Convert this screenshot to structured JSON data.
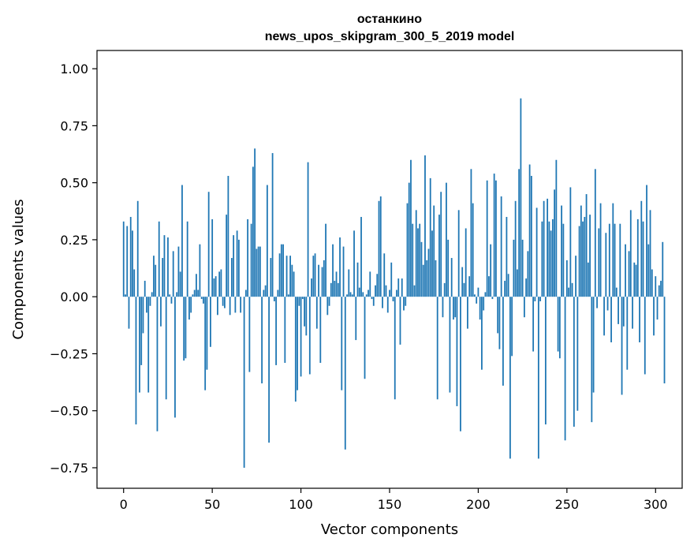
{
  "chart_data": {
    "type": "bar",
    "title": "останкино",
    "subtitle": "news_upos_skipgram_300_5_2019 model",
    "xlabel": "Vector components",
    "ylabel": "Components values",
    "xlim": [
      -15,
      315
    ],
    "ylim": [
      -0.84,
      1.08
    ],
    "xticks": [
      0,
      50,
      100,
      150,
      200,
      250,
      300
    ],
    "yticks": [
      -0.75,
      -0.5,
      -0.25,
      0.0,
      0.25,
      0.5,
      0.75,
      1.0
    ],
    "ytick_labels": [
      "−0.75",
      "−0.50",
      "−0.25",
      "0.00",
      "0.25",
      "0.50",
      "0.75",
      "1.00"
    ],
    "bar_color": "#1f77b4",
    "grid": false,
    "legend": "none",
    "values": [
      0.33,
      0.01,
      0.31,
      -0.14,
      0.35,
      0.29,
      0.12,
      -0.56,
      0.42,
      -0.42,
      -0.3,
      -0.16,
      0.07,
      -0.07,
      -0.42,
      -0.04,
      0.02,
      0.18,
      0.14,
      -0.59,
      0.33,
      -0.13,
      0.17,
      0.27,
      -0.45,
      0.26,
      0.01,
      -0.03,
      0.2,
      -0.53,
      0.02,
      0.22,
      0.11,
      0.49,
      -0.28,
      -0.27,
      0.33,
      -0.1,
      -0.07,
      0.01,
      0.03,
      0.1,
      0.03,
      0.23,
      -0.01,
      -0.03,
      -0.41,
      -0.32,
      0.46,
      -0.22,
      0.34,
      0.08,
      0.09,
      -0.08,
      0.11,
      0.12,
      -0.04,
      -0.05,
      0.36,
      0.53,
      -0.08,
      0.17,
      0.27,
      -0.07,
      0.29,
      0.25,
      -0.07,
      0.0,
      -0.75,
      0.03,
      0.34,
      -0.33,
      0.32,
      0.57,
      0.65,
      0.21,
      0.22,
      0.22,
      -0.38,
      0.03,
      0.05,
      0.49,
      -0.64,
      0.17,
      0.63,
      -0.02,
      -0.3,
      0.03,
      0.19,
      0.23,
      0.23,
      -0.29,
      0.18,
      0.01,
      0.18,
      0.14,
      0.11,
      -0.46,
      -0.41,
      -0.04,
      -0.35,
      -0.01,
      -0.13,
      -0.17,
      0.59,
      -0.34,
      0.08,
      0.18,
      0.19,
      -0.14,
      0.14,
      -0.29,
      0.13,
      0.16,
      0.32,
      -0.08,
      -0.04,
      0.06,
      0.23,
      0.07,
      0.11,
      0.06,
      0.26,
      -0.41,
      0.22,
      -0.67,
      0.01,
      0.12,
      0.02,
      0.01,
      0.29,
      -0.19,
      0.15,
      0.04,
      0.35,
      0.02,
      -0.36,
      0.01,
      0.03,
      0.11,
      -0.01,
      -0.04,
      0.05,
      0.1,
      0.42,
      0.44,
      -0.05,
      0.19,
      0.05,
      -0.07,
      0.03,
      0.15,
      -0.02,
      -0.45,
      0.03,
      0.08,
      -0.21,
      0.08,
      -0.06,
      -0.04,
      0.41,
      0.5,
      0.6,
      0.32,
      0.05,
      0.38,
      0.3,
      0.32,
      0.24,
      0.14,
      0.62,
      0.16,
      0.21,
      0.52,
      0.29,
      0.4,
      0.16,
      -0.45,
      0.36,
      0.46,
      -0.09,
      0.06,
      0.5,
      0.25,
      -0.42,
      0.17,
      -0.1,
      -0.09,
      -0.48,
      0.38,
      -0.59,
      0.13,
      0.06,
      0.3,
      -0.14,
      0.09,
      0.56,
      0.41,
      0.01,
      -0.03,
      0.04,
      -0.1,
      -0.32,
      -0.06,
      0.02,
      0.51,
      0.09,
      0.23,
      -0.01,
      0.54,
      0.51,
      -0.16,
      -0.23,
      0.44,
      -0.39,
      0.07,
      0.35,
      0.1,
      -0.71,
      -0.26,
      0.25,
      0.42,
      0.12,
      0.56,
      0.87,
      0.25,
      -0.09,
      0.08,
      0.2,
      0.58,
      0.53,
      -0.24,
      -0.02,
      0.39,
      -0.71,
      -0.02,
      0.33,
      0.42,
      -0.56,
      0.43,
      0.33,
      0.29,
      0.34,
      0.47,
      0.6,
      -0.24,
      -0.27,
      0.4,
      0.32,
      -0.63,
      0.16,
      0.04,
      0.48,
      0.06,
      -0.57,
      0.18,
      -0.5,
      0.31,
      0.4,
      0.33,
      0.35,
      0.45,
      0.15,
      0.36,
      -0.55,
      -0.42,
      0.56,
      -0.05,
      0.3,
      0.41,
      0.0,
      -0.17,
      0.28,
      -0.06,
      0.32,
      -0.2,
      0.41,
      0.32,
      0.04,
      -0.12,
      0.32,
      -0.43,
      -0.13,
      0.23,
      -0.32,
      0.2,
      0.38,
      -0.14,
      0.15,
      0.14,
      0.34,
      -0.2,
      0.42,
      0.33,
      -0.34,
      0.49,
      0.23,
      0.38,
      0.12,
      -0.17,
      0.09,
      -0.1,
      0.05,
      0.07,
      0.24,
      -0.38
    ]
  }
}
